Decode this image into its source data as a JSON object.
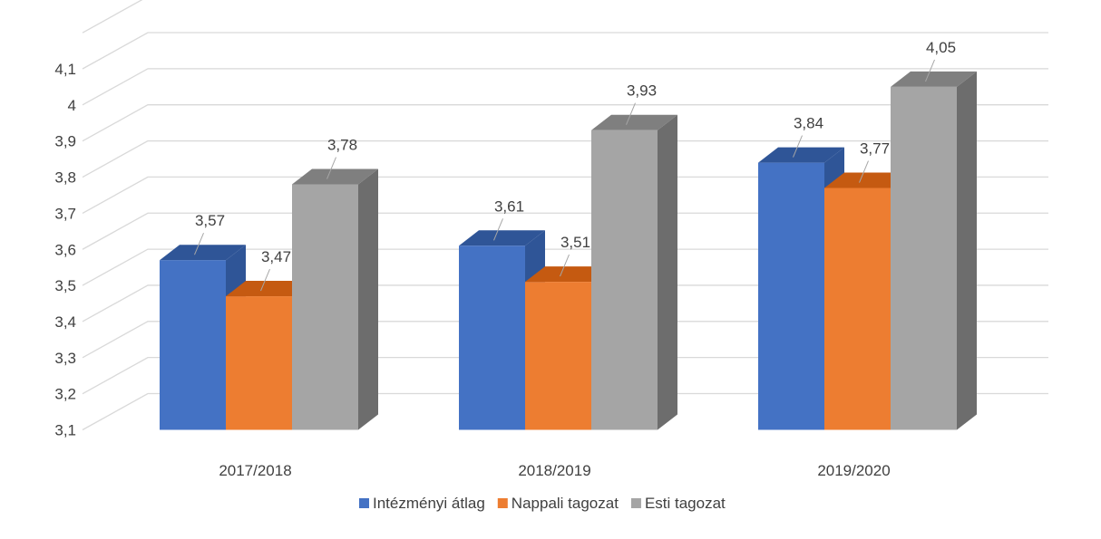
{
  "chart_data": {
    "type": "bar",
    "style": "3d-clustered-column",
    "title": "",
    "xlabel": "",
    "ylabel": "",
    "categories": [
      "2017/2018",
      "2018/2019",
      "2019/2020"
    ],
    "series": [
      {
        "name": "Intézményi átlag",
        "values": [
          3.57,
          3.61,
          3.84
        ],
        "labels": [
          "3,57",
          "3,61",
          "3,84"
        ],
        "color": "#4472c4",
        "side_color": "#2f5597",
        "top_color": "#2f5597"
      },
      {
        "name": "Nappali tagozat",
        "values": [
          3.47,
          3.51,
          3.77
        ],
        "labels": [
          "3,47",
          "3,51",
          "3,77"
        ],
        "color": "#ed7d31",
        "side_color": "#c55a11",
        "top_color": "#c55a11"
      },
      {
        "name": "Esti tagozat",
        "values": [
          3.78,
          3.93,
          4.05
        ],
        "labels": [
          "3,78",
          "3,93",
          "4,05"
        ],
        "color": "#a5a5a5",
        "side_color": "#6d6d6d",
        "top_color": "#7f7f7f"
      }
    ],
    "y_ticks": [
      3.1,
      3.2,
      3.3,
      3.4,
      3.5,
      3.6,
      3.7,
      3.8,
      3.9,
      4.0,
      4.1
    ],
    "y_tick_labels": [
      "3,1",
      "3,2",
      "3,3",
      "3,4",
      "3,5",
      "3,6",
      "3,7",
      "3,8",
      "3,9",
      "4",
      "4,1"
    ],
    "ylim": [
      3.1,
      4.2
    ],
    "grid": true,
    "legend_position": "bottom"
  }
}
